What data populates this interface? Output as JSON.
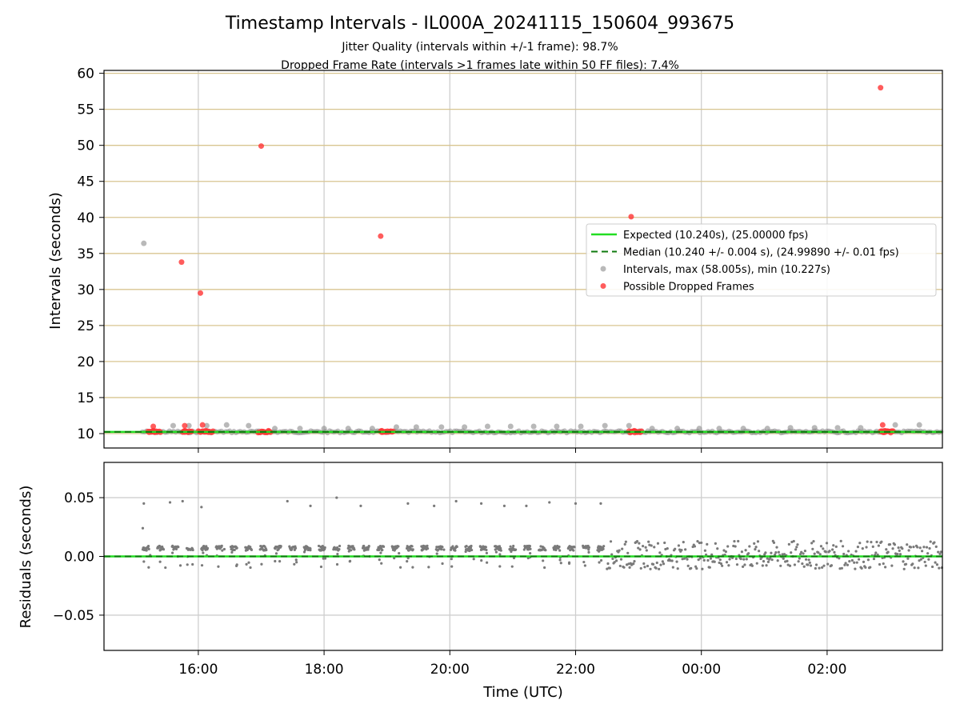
{
  "title": "Timestamp Intervals - IL000A_20241115_150604_993675",
  "subtitle_1": "Jitter Quality (intervals within +/-1 frame): 98.7%",
  "subtitle_2": "Dropped Frame Rate (intervals >1 frames late within 50 FF files): 7.4%",
  "chart_data": [
    {
      "type": "scatter",
      "panel": "intervals",
      "ylabel": "Intervals (seconds)",
      "ylim": [
        8,
        60.4
      ],
      "yticks": [
        10,
        15,
        20,
        25,
        30,
        35,
        40,
        45,
        50,
        55,
        60
      ],
      "grid": true,
      "legend_position": "right",
      "colors": {
        "expected": "#22dd22",
        "median": "#0e7a0e",
        "intervals": "#8a8a8a",
        "dropped": "#ff3333",
        "hgrid": "#d8c590"
      },
      "lines": [
        {
          "name": "Expected (10.240s), (25.00000 fps)",
          "y": 10.24,
          "style": "solid"
        },
        {
          "name": "Median (10.240 +/- 0.004 s), (24.99890 +/- 0.01 fps)",
          "y": 10.24,
          "style": "dashed"
        }
      ],
      "series": [
        {
          "name": "Intervals, max (58.005s), min (10.227s)",
          "points": [
            [
              "2024-11-15T15:08",
              36.4
            ],
            [
              "2024-11-15T15:36",
              11.1
            ],
            [
              "2024-11-15T15:51",
              11.1
            ],
            [
              "2024-11-15T16:08",
              11.1
            ],
            [
              "2024-11-15T16:27",
              11.2
            ],
            [
              "2024-11-15T16:48",
              11.1
            ],
            [
              "2024-11-15T17:13",
              10.7
            ],
            [
              "2024-11-15T17:37",
              10.7
            ],
            [
              "2024-11-15T18:00",
              10.7
            ],
            [
              "2024-11-15T18:23",
              10.7
            ],
            [
              "2024-11-15T18:46",
              10.7
            ],
            [
              "2024-11-15T19:09",
              10.9
            ],
            [
              "2024-11-15T19:28",
              10.9
            ],
            [
              "2024-11-15T19:52",
              10.9
            ],
            [
              "2024-11-15T20:14",
              10.9
            ],
            [
              "2024-11-15T20:36",
              11.0
            ],
            [
              "2024-11-15T20:58",
              11.0
            ],
            [
              "2024-11-15T21:20",
              11.0
            ],
            [
              "2024-11-15T21:42",
              11.0
            ],
            [
              "2024-11-15T22:05",
              11.0
            ],
            [
              "2024-11-15T22:28",
              11.1
            ],
            [
              "2024-11-15T22:51",
              11.1
            ],
            [
              "2024-11-15T23:13",
              10.7
            ],
            [
              "2024-11-15T23:37",
              10.7
            ],
            [
              "2024-11-15T23:58",
              10.7
            ],
            [
              "2024-11-16T00:17",
              10.7
            ],
            [
              "2024-11-16T00:40",
              10.7
            ],
            [
              "2024-11-16T01:03",
              10.7
            ],
            [
              "2024-11-16T01:25",
              10.8
            ],
            [
              "2024-11-16T01:48",
              10.8
            ],
            [
              "2024-11-16T02:10",
              10.8
            ],
            [
              "2024-11-16T02:32",
              10.8
            ],
            [
              "2024-11-16T03:05",
              11.2
            ],
            [
              "2024-11-16T03:28",
              11.2
            ]
          ]
        },
        {
          "name": "Possible Dropped Frames",
          "points": [
            [
              "2024-11-15T15:17",
              10.4
            ],
            [
              "2024-11-15T15:17",
              11.0
            ],
            [
              "2024-11-15T15:47",
              10.4
            ],
            [
              "2024-11-15T15:47",
              11.1
            ],
            [
              "2024-11-15T15:44",
              33.8
            ],
            [
              "2024-11-15T16:02",
              29.5
            ],
            [
              "2024-11-15T16:04",
              11.2
            ],
            [
              "2024-11-15T16:07",
              10.4
            ],
            [
              "2024-11-15T17:00",
              49.9
            ],
            [
              "2024-11-15T17:07",
              10.4
            ],
            [
              "2024-11-15T18:55",
              10.4
            ],
            [
              "2024-11-15T18:54",
              37.4
            ],
            [
              "2024-11-15T22:53",
              40.1
            ],
            [
              "2024-11-15T22:56",
              10.4
            ],
            [
              "2024-11-16T02:51",
              58.0
            ],
            [
              "2024-11-16T02:53",
              11.2
            ],
            [
              "2024-11-16T02:55",
              10.4
            ]
          ]
        }
      ],
      "legend": [
        "Expected (10.240s), (25.00000 fps)",
        "Median (10.240 +/- 0.004 s), (24.99890 +/- 0.01 fps)",
        "Intervals, max (58.005s), min (10.227s)",
        "Possible Dropped Frames"
      ]
    },
    {
      "type": "scatter",
      "panel": "residuals",
      "xlabel": "Time (UTC)",
      "ylabel": "Residuals (seconds)",
      "xlim": [
        "2024-11-15T14:30",
        "2024-11-16T03:50"
      ],
      "xticks": [
        "16:00",
        "18:00",
        "20:00",
        "22:00",
        "00:00",
        "02:00"
      ],
      "ylim": [
        -0.08,
        0.08
      ],
      "yticks": [
        0.05,
        0.0,
        -0.05
      ],
      "ytick_labels": [
        "0.05",
        "0.00",
        "−0.05"
      ],
      "grid": true,
      "lines": [
        {
          "name": "Expected",
          "y": 0.0,
          "style": "solid"
        },
        {
          "name": "Median",
          "y": 0.0,
          "style": "dashed"
        }
      ],
      "outliers": [
        [
          "2024-11-15T15:08",
          0.045
        ],
        [
          "2024-11-15T15:07",
          0.024
        ],
        [
          "2024-11-15T15:33",
          0.046
        ],
        [
          "2024-11-15T15:45",
          0.047
        ],
        [
          "2024-11-15T16:03",
          0.042
        ],
        [
          "2024-11-15T17:25",
          0.047
        ],
        [
          "2024-11-15T17:47",
          0.043
        ],
        [
          "2024-11-15T18:12",
          0.05
        ],
        [
          "2024-11-15T18:35",
          0.043
        ],
        [
          "2024-11-15T19:20",
          0.045
        ],
        [
          "2024-11-15T19:45",
          0.043
        ],
        [
          "2024-11-15T20:06",
          0.047
        ],
        [
          "2024-11-15T20:30",
          0.045
        ],
        [
          "2024-11-15T20:52",
          0.043
        ],
        [
          "2024-11-15T21:13",
          0.043
        ],
        [
          "2024-11-15T21:35",
          0.046
        ],
        [
          "2024-11-15T22:00",
          0.045
        ],
        [
          "2024-11-15T22:24",
          0.045
        ]
      ]
    }
  ]
}
